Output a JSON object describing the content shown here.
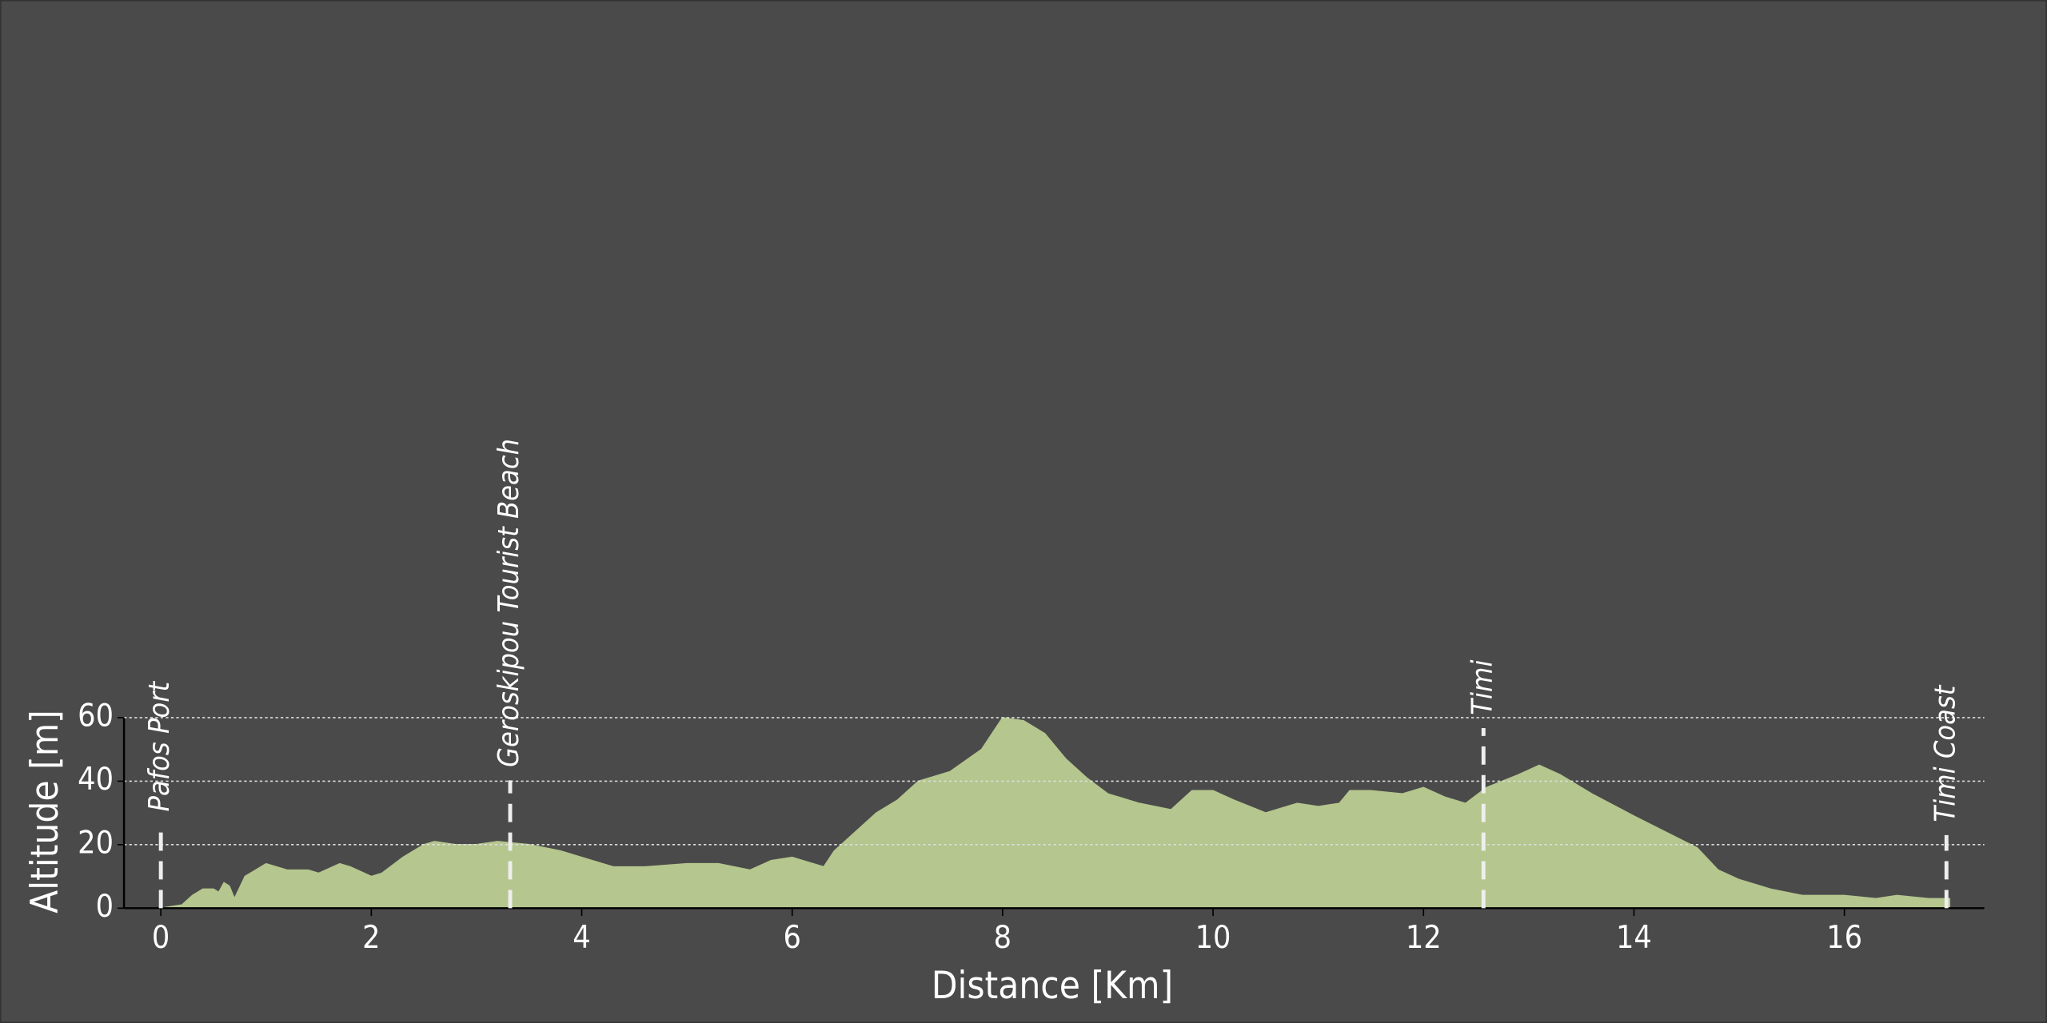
{
  "chart_data": {
    "type": "area",
    "xlabel": "Distance [Km]",
    "ylabel": "Altitude [m]",
    "color": "#b5c68e",
    "background": "#4a4a4a",
    "grid": true,
    "x": [
      0,
      0.2,
      0.3,
      0.4,
      0.5,
      0.55,
      0.6,
      0.65,
      0.7,
      0.8,
      0.9,
      1.0,
      1.1,
      1.2,
      1.4,
      1.5,
      1.7,
      1.8,
      2.0,
      2.1,
      2.3,
      2.5,
      2.6,
      2.8,
      3.0,
      3.2,
      3.5,
      3.8,
      4.0,
      4.3,
      4.6,
      5.0,
      5.3,
      5.6,
      5.8,
      6.0,
      6.3,
      6.4,
      6.6,
      6.8,
      7.0,
      7.2,
      7.5,
      7.8,
      8.0,
      8.2,
      8.4,
      8.6,
      8.8,
      9.0,
      9.3,
      9.6,
      9.8,
      10.0,
      10.2,
      10.5,
      10.8,
      11.0,
      11.2,
      11.3,
      11.5,
      11.8,
      12.0,
      12.2,
      12.4,
      12.6,
      12.9,
      13.1,
      13.3,
      13.6,
      14.0,
      14.3,
      14.6,
      14.8,
      15.0,
      15.3,
      15.6,
      16.0,
      16.3,
      16.5,
      16.8,
      17.0
    ],
    "values": [
      0,
      1,
      4,
      6,
      6,
      5,
      8,
      7,
      3,
      10,
      12,
      14,
      13,
      12,
      12,
      11,
      14,
      13,
      10,
      11,
      16,
      20,
      21,
      20,
      20,
      21,
      20,
      18,
      16,
      13,
      13,
      14,
      14,
      12,
      15,
      16,
      13,
      18,
      24,
      30,
      34,
      40,
      43,
      50,
      60,
      59,
      55,
      47,
      41,
      36,
      33,
      31,
      37,
      37,
      34,
      30,
      33,
      32,
      33,
      37,
      37,
      36,
      38,
      35,
      33,
      38,
      42,
      45,
      42,
      36,
      29,
      24,
      19,
      12,
      9,
      6,
      4,
      4,
      3,
      4,
      3,
      3
    ],
    "waypoints": [
      {
        "name": "Pafos Port",
        "x": 0
      },
      {
        "name": "Geroskipou Tourist Beach",
        "x": 3.32
      },
      {
        "name": "Timi",
        "x": 12.57
      },
      {
        "name": "Timi Coast",
        "x": 16.97
      }
    ],
    "xlim": [
      -0.35,
      17.33
    ],
    "ylim": [
      0,
      60
    ],
    "xticks": [
      0,
      2,
      4,
      6,
      8,
      10,
      12,
      14,
      16
    ],
    "yticks": [
      0,
      20,
      40,
      60
    ]
  }
}
